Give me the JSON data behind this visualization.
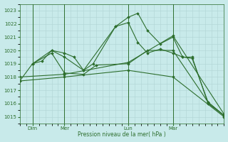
{
  "xlabel": "Pression niveau de la mer( hPa )",
  "ylim": [
    1014.5,
    1023.5
  ],
  "yticks": [
    1015,
    1016,
    1017,
    1018,
    1019,
    1020,
    1021,
    1022,
    1023
  ],
  "xlim": [
    0,
    32
  ],
  "bg_color": "#c8eaea",
  "line_color": "#2d6e2d",
  "grid_color": "#b0d4d4",
  "xtick_labels": [
    "Dim",
    "Mer",
    "Lun",
    "Mar"
  ],
  "xtick_positions": [
    2,
    7,
    17,
    24
  ],
  "vline_positions": [
    2,
    7,
    17,
    24
  ],
  "series": [
    {
      "x": [
        0,
        2,
        3.5,
        5,
        7,
        8.5,
        10,
        11.5,
        15,
        17,
        18.5,
        20,
        22,
        24,
        25.5,
        27,
        29.5,
        32
      ],
      "y": [
        1017.7,
        1019.0,
        1019.2,
        1020.0,
        1019.8,
        1019.5,
        1018.5,
        1019.0,
        1021.8,
        1022.5,
        1022.8,
        1021.5,
        1020.5,
        1021.0,
        1019.5,
        1019.4,
        1016.1,
        1015.1
      ]
    },
    {
      "x": [
        2,
        5,
        7,
        10,
        15,
        17,
        18.5,
        20,
        22,
        24,
        25.5,
        27,
        29.5,
        32
      ],
      "y": [
        1019.0,
        1020.0,
        1019.5,
        1018.5,
        1021.8,
        1022.1,
        1020.6,
        1019.8,
        1020.1,
        1019.8,
        1019.5,
        1019.5,
        1016.0,
        1015.1
      ]
    },
    {
      "x": [
        2,
        5,
        7,
        10,
        12,
        17,
        20,
        24,
        29.5,
        32
      ],
      "y": [
        1019.0,
        1019.8,
        1018.3,
        1018.2,
        1018.9,
        1019.0,
        1020.0,
        1020.0,
        1016.1,
        1015.1
      ]
    },
    {
      "x": [
        0,
        7,
        17,
        24,
        32
      ],
      "y": [
        1018.0,
        1018.2,
        1019.1,
        1021.1,
        1015.2
      ]
    },
    {
      "x": [
        0,
        7,
        17,
        24,
        32
      ],
      "y": [
        1017.7,
        1018.0,
        1018.5,
        1018.0,
        1015.0
      ]
    }
  ]
}
